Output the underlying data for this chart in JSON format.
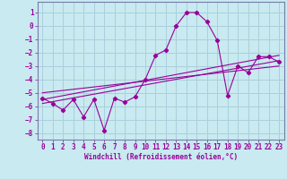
{
  "xlabel": "Windchill (Refroidissement éolien,°C)",
  "bg_color": "#c8eaf0",
  "grid_color": "#aad0dc",
  "line_color": "#990099",
  "spine_color": "#7a7aaa",
  "xlim": [
    -0.5,
    23.5
  ],
  "ylim": [
    -8.5,
    1.8
  ],
  "yticks": [
    1,
    0,
    -1,
    -2,
    -3,
    -4,
    -5,
    -6,
    -7,
    -8
  ],
  "xticks": [
    0,
    1,
    2,
    3,
    4,
    5,
    6,
    7,
    8,
    9,
    10,
    11,
    12,
    13,
    14,
    15,
    16,
    17,
    18,
    19,
    20,
    21,
    22,
    23
  ],
  "line1_x": [
    0,
    1,
    2,
    3,
    4,
    5,
    6,
    7,
    8,
    9,
    10,
    11,
    12,
    13,
    14,
    15,
    16,
    17,
    18,
    19,
    20,
    21,
    22,
    23
  ],
  "line1_y": [
    -5.4,
    -5.8,
    -6.3,
    -5.5,
    -6.8,
    -5.5,
    -7.8,
    -5.4,
    -5.7,
    -5.3,
    -4.0,
    -2.2,
    -1.8,
    0.0,
    1.0,
    1.0,
    0.3,
    -1.1,
    -5.2,
    -3.0,
    -3.5,
    -2.3,
    -2.3,
    -2.7
  ],
  "line2_x": [
    0,
    23
  ],
  "line2_y": [
    -5.8,
    -2.6
  ],
  "line3_x": [
    0,
    23
  ],
  "line3_y": [
    -5.0,
    -3.0
  ],
  "line4_x": [
    0,
    23
  ],
  "line4_y": [
    -5.5,
    -2.2
  ],
  "tick_fontsize": 5.5,
  "xlabel_fontsize": 5.5
}
